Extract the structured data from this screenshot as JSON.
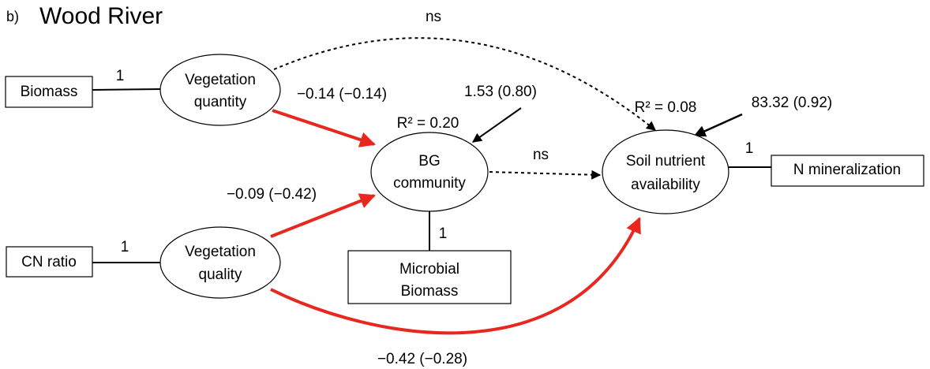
{
  "header": {
    "panel": "b)",
    "title": "Wood River"
  },
  "nodes": [
    {
      "id": "biomass",
      "lines": [
        "Biomass"
      ]
    },
    {
      "id": "veg_quantity",
      "lines": [
        "Vegetation",
        "quantity"
      ]
    },
    {
      "id": "cn_ratio",
      "lines": [
        "CN ratio"
      ]
    },
    {
      "id": "veg_quality",
      "lines": [
        "Vegetation",
        "quality"
      ]
    },
    {
      "id": "bg_community",
      "lines": [
        "BG",
        "community"
      ],
      "r2": "R² = 0.20",
      "error": "1.53 (0.80)"
    },
    {
      "id": "microbial_biomass",
      "lines": [
        "Microbial",
        "Biomass"
      ]
    },
    {
      "id": "soil_nutrient",
      "lines": [
        "Soil nutrient",
        "availability"
      ],
      "r2": "R² = 0.08",
      "error": "83.32 (0.92)"
    },
    {
      "id": "n_mineralization",
      "lines": [
        "N mineralization"
      ]
    }
  ],
  "edges": [
    {
      "from": "biomass",
      "to": "veg_quantity",
      "label": "1"
    },
    {
      "from": "cn_ratio",
      "to": "veg_quality",
      "label": "1"
    },
    {
      "from": "veg_quantity",
      "to": "bg_community",
      "label": "−0.14 (−0.14)"
    },
    {
      "from": "veg_quality",
      "to": "bg_community",
      "label": "−0.09 (−0.42)"
    },
    {
      "from": "veg_quantity",
      "to": "soil_nutrient",
      "label": "ns"
    },
    {
      "from": "bg_community",
      "to": "soil_nutrient",
      "label": "ns"
    },
    {
      "from": "bg_community",
      "to": "microbial_biomass",
      "label": "1"
    },
    {
      "from": "soil_nutrient",
      "to": "n_mineralization",
      "label": "1"
    },
    {
      "from": "veg_quality",
      "to": "soil_nutrient",
      "label": "−0.42 (−0.28)"
    }
  ]
}
